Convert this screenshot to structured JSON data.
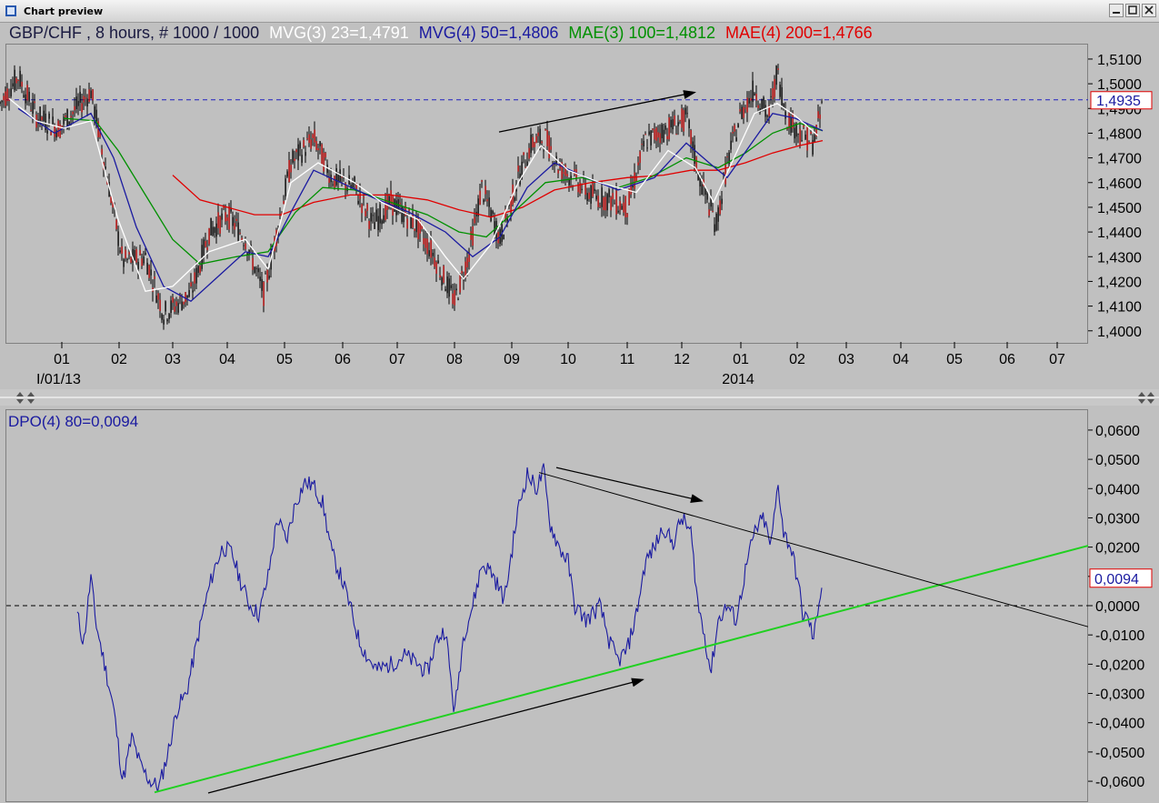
{
  "window": {
    "title": "Chart preview"
  },
  "chart_data": [
    {
      "type": "candlestick",
      "title": "GBP/CHF , 8 hours, # 1000 / 1000",
      "indicators": [
        {
          "label": "MVG(3) 23=1,4791",
          "color": "#ffffff"
        },
        {
          "label": "MVG(4) 50=1,4806",
          "color": "#1a1aa0"
        },
        {
          "label": "MAE(3) 100=1,4812",
          "color": "#009000"
        },
        {
          "label": "MAE(4) 200=1,4766",
          "color": "#e00000"
        }
      ],
      "price_label": "1,4935",
      "y_ticks": [
        "1,5100",
        "1,5000",
        "1,4900",
        "1,4800",
        "1,4700",
        "1,4600",
        "1,4500",
        "1,4400",
        "1,4300",
        "1,4200",
        "1,4100",
        "1,4000"
      ],
      "ylim": [
        1.3955,
        1.5155
      ],
      "x_ticks": [
        "01",
        "02",
        "03",
        "04",
        "05",
        "06",
        "07",
        "08",
        "09",
        "10",
        "11",
        "12",
        "01",
        "02",
        "03",
        "04",
        "05",
        "06",
        "07"
      ],
      "x_sublabels": [
        "I/01/13",
        "2014"
      ],
      "reference_level": 1.4935,
      "price_path": [
        [
          0,
          1.492
        ],
        [
          20,
          1.503
        ],
        [
          40,
          1.487
        ],
        [
          65,
          1.482
        ],
        [
          100,
          1.497
        ],
        [
          115,
          1.468
        ],
        [
          135,
          1.428
        ],
        [
          160,
          1.43
        ],
        [
          180,
          1.407
        ],
        [
          210,
          1.415
        ],
        [
          230,
          1.44
        ],
        [
          250,
          1.447
        ],
        [
          270,
          1.437
        ],
        [
          290,
          1.415
        ],
        [
          300,
          1.432
        ],
        [
          320,
          1.468
        ],
        [
          345,
          1.478
        ],
        [
          365,
          1.462
        ],
        [
          390,
          1.458
        ],
        [
          410,
          1.443
        ],
        [
          430,
          1.452
        ],
        [
          455,
          1.444
        ],
        [
          475,
          1.432
        ],
        [
          500,
          1.412
        ],
        [
          515,
          1.43
        ],
        [
          530,
          1.458
        ],
        [
          550,
          1.437
        ],
        [
          570,
          1.462
        ],
        [
          585,
          1.476
        ],
        [
          600,
          1.478
        ],
        [
          615,
          1.466
        ],
        [
          630,
          1.462
        ],
        [
          650,
          1.455
        ],
        [
          670,
          1.453
        ],
        [
          690,
          1.45
        ],
        [
          710,
          1.477
        ],
        [
          735,
          1.482
        ],
        [
          755,
          1.486
        ],
        [
          770,
          1.461
        ],
        [
          788,
          1.443
        ],
        [
          800,
          1.468
        ],
        [
          815,
          1.488
        ],
        [
          830,
          1.498
        ],
        [
          845,
          1.486
        ],
        [
          855,
          1.505
        ],
        [
          865,
          1.487
        ],
        [
          880,
          1.48
        ],
        [
          895,
          1.476
        ],
        [
          905,
          1.492
        ]
      ],
      "mvg3_path": [
        [
          10,
          1.494
        ],
        [
          40,
          1.485
        ],
        [
          70,
          1.482
        ],
        [
          100,
          1.485
        ],
        [
          130,
          1.445
        ],
        [
          160,
          1.416
        ],
        [
          190,
          1.418
        ],
        [
          230,
          1.432
        ],
        [
          270,
          1.437
        ],
        [
          295,
          1.425
        ],
        [
          320,
          1.46
        ],
        [
          350,
          1.468
        ],
        [
          390,
          1.46
        ],
        [
          420,
          1.452
        ],
        [
          460,
          1.445
        ],
        [
          490,
          1.43
        ],
        [
          510,
          1.421
        ],
        [
          540,
          1.435
        ],
        [
          570,
          1.46
        ],
        [
          595,
          1.475
        ],
        [
          625,
          1.465
        ],
        [
          660,
          1.46
        ],
        [
          700,
          1.456
        ],
        [
          735,
          1.473
        ],
        [
          765,
          1.466
        ],
        [
          785,
          1.452
        ],
        [
          805,
          1.468
        ],
        [
          830,
          1.488
        ],
        [
          855,
          1.492
        ],
        [
          875,
          1.487
        ],
        [
          900,
          1.479
        ]
      ],
      "mvg4_path": [
        [
          20,
          1.49
        ],
        [
          60,
          1.48
        ],
        [
          100,
          1.488
        ],
        [
          125,
          1.47
        ],
        [
          150,
          1.442
        ],
        [
          180,
          1.418
        ],
        [
          210,
          1.412
        ],
        [
          240,
          1.422
        ],
        [
          270,
          1.432
        ],
        [
          295,
          1.43
        ],
        [
          320,
          1.448
        ],
        [
          345,
          1.465
        ],
        [
          375,
          1.46
        ],
        [
          410,
          1.454
        ],
        [
          450,
          1.448
        ],
        [
          490,
          1.44
        ],
        [
          520,
          1.43
        ],
        [
          550,
          1.438
        ],
        [
          580,
          1.458
        ],
        [
          610,
          1.468
        ],
        [
          645,
          1.462
        ],
        [
          680,
          1.457
        ],
        [
          720,
          1.462
        ],
        [
          755,
          1.476
        ],
        [
          780,
          1.468
        ],
        [
          800,
          1.462
        ],
        [
          825,
          1.475
        ],
        [
          850,
          1.488
        ],
        [
          875,
          1.486
        ],
        [
          905,
          1.481
        ]
      ],
      "mae3_path": [
        [
          70,
          1.486
        ],
        [
          105,
          1.485
        ],
        [
          130,
          1.473
        ],
        [
          160,
          1.455
        ],
        [
          190,
          1.437
        ],
        [
          220,
          1.427
        ],
        [
          260,
          1.43
        ],
        [
          295,
          1.432
        ],
        [
          325,
          1.448
        ],
        [
          355,
          1.458
        ],
        [
          390,
          1.457
        ],
        [
          430,
          1.452
        ],
        [
          470,
          1.447
        ],
        [
          505,
          1.44
        ],
        [
          535,
          1.438
        ],
        [
          565,
          1.448
        ],
        [
          600,
          1.46
        ],
        [
          640,
          1.462
        ],
        [
          680,
          1.458
        ],
        [
          715,
          1.462
        ],
        [
          755,
          1.47
        ],
        [
          790,
          1.466
        ],
        [
          820,
          1.472
        ],
        [
          850,
          1.48
        ],
        [
          880,
          1.484
        ],
        [
          905,
          1.481
        ]
      ],
      "mae4_path": [
        [
          190,
          1.463
        ],
        [
          220,
          1.453
        ],
        [
          250,
          1.45
        ],
        [
          280,
          1.447
        ],
        [
          310,
          1.447
        ],
        [
          345,
          1.452
        ],
        [
          385,
          1.455
        ],
        [
          430,
          1.455
        ],
        [
          470,
          1.453
        ],
        [
          505,
          1.449
        ],
        [
          540,
          1.446
        ],
        [
          575,
          1.45
        ],
        [
          610,
          1.457
        ],
        [
          650,
          1.46
        ],
        [
          690,
          1.462
        ],
        [
          730,
          1.463
        ],
        [
          760,
          1.465
        ],
        [
          790,
          1.465
        ],
        [
          820,
          1.468
        ],
        [
          850,
          1.472
        ],
        [
          880,
          1.475
        ],
        [
          905,
          1.477
        ]
      ],
      "trend_arrow": {
        "from": [
          549,
          1.4805
        ],
        "to": [
          764,
          1.4965
        ]
      }
    },
    {
      "type": "line",
      "title": "DPO(4) 80=0,0094",
      "value_label": "0,0094",
      "y_ticks": [
        "0,0600",
        "0,0500",
        "0,0400",
        "0,0300",
        "0,0200",
        "0,0100",
        "0,0000",
        "-0,0100",
        "-0,0200",
        "-0,0300",
        "-0,0400",
        "-0,0500",
        "-0,0600"
      ],
      "ylim": [
        -0.0665,
        0.0665
      ],
      "zero_level": 0.0,
      "dpo_path": [
        [
          85,
          -0.003
        ],
        [
          92,
          -0.013
        ],
        [
          100,
          0.01
        ],
        [
          105,
          -0.005
        ],
        [
          115,
          -0.02
        ],
        [
          125,
          -0.035
        ],
        [
          135,
          -0.06
        ],
        [
          145,
          -0.045
        ],
        [
          155,
          -0.055
        ],
        [
          165,
          -0.06
        ],
        [
          175,
          -0.062
        ],
        [
          185,
          -0.05
        ],
        [
          195,
          -0.035
        ],
        [
          205,
          -0.03
        ],
        [
          215,
          -0.015
        ],
        [
          225,
          0.0
        ],
        [
          235,
          0.012
        ],
        [
          245,
          0.02
        ],
        [
          255,
          0.018
        ],
        [
          265,
          0.008
        ],
        [
          275,
          0.0
        ],
        [
          285,
          -0.003
        ],
        [
          295,
          0.01
        ],
        [
          305,
          0.03
        ],
        [
          315,
          0.022
        ],
        [
          325,
          0.035
        ],
        [
          335,
          0.042
        ],
        [
          345,
          0.041
        ],
        [
          355,
          0.035
        ],
        [
          365,
          0.018
        ],
        [
          375,
          0.01
        ],
        [
          385,
          0.0
        ],
        [
          395,
          -0.012
        ],
        [
          405,
          -0.018
        ],
        [
          415,
          -0.022
        ],
        [
          430,
          -0.02
        ],
        [
          445,
          -0.017
        ],
        [
          460,
          -0.02
        ],
        [
          470,
          -0.023
        ],
        [
          480,
          -0.012
        ],
        [
          490,
          -0.008
        ],
        [
          500,
          -0.037
        ],
        [
          510,
          -0.01
        ],
        [
          520,
          0.0
        ],
        [
          530,
          0.014
        ],
        [
          540,
          0.012
        ],
        [
          555,
          0.002
        ],
        [
          570,
          0.033
        ],
        [
          580,
          0.045
        ],
        [
          590,
          0.04
        ],
        [
          598,
          0.046
        ],
        [
          605,
          0.028
        ],
        [
          615,
          0.02
        ],
        [
          625,
          0.015
        ],
        [
          632,
          0.0
        ],
        [
          645,
          -0.005
        ],
        [
          660,
          0.0
        ],
        [
          670,
          -0.012
        ],
        [
          680,
          -0.019
        ],
        [
          690,
          -0.015
        ],
        [
          700,
          -0.003
        ],
        [
          710,
          0.015
        ],
        [
          720,
          0.02
        ],
        [
          730,
          0.027
        ],
        [
          740,
          0.021
        ],
        [
          750,
          0.03
        ],
        [
          760,
          0.025
        ],
        [
          768,
          0.0
        ],
        [
          775,
          -0.01
        ],
        [
          782,
          -0.023
        ],
        [
          790,
          -0.005
        ],
        [
          800,
          0.0
        ],
        [
          810,
          -0.005
        ],
        [
          820,
          0.012
        ],
        [
          830,
          0.025
        ],
        [
          840,
          0.03
        ],
        [
          848,
          0.02
        ],
        [
          856,
          0.042
        ],
        [
          862,
          0.025
        ],
        [
          870,
          0.02
        ],
        [
          878,
          0.008
        ],
        [
          883,
          -0.003
        ],
        [
          890,
          -0.005
        ],
        [
          895,
          -0.012
        ],
        [
          900,
          0.0
        ],
        [
          905,
          0.009
        ]
      ],
      "support_line": {
        "from": [
          170,
          -0.0638
        ],
        "to": [
          1197,
          0.0205
        ]
      },
      "resistance_line": {
        "from": [
          593,
          0.0455
        ],
        "to": [
          1197,
          -0.0072
        ]
      },
      "arrows": [
        {
          "from": [
            229,
            -0.064
          ],
          "to": [
            707,
            -0.0253
          ]
        },
        {
          "from": [
            612,
            0.0472
          ],
          "to": [
            772,
            0.0358
          ]
        }
      ]
    }
  ]
}
